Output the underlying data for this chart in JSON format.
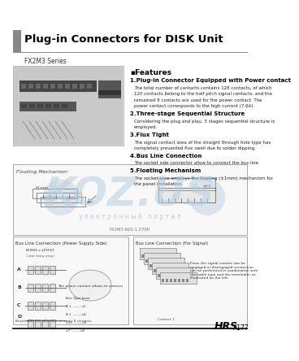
{
  "title": "Plug-in Connectors for DISK Unit",
  "subtitle": "FX2M3 Series",
  "bg_color": "#ffffff",
  "header_bar_color": "#888888",
  "line_color": "#000000",
  "footer_brand": "HRS",
  "footer_page": "A177",
  "features_title": "▪Features",
  "features": [
    {
      "num": "1.",
      "bold": "Plug-in Connector Equipped with Power contact",
      "text": "The total number of contacts contains 128 contacts, of which\n120 contacts belong to the half pitch signal contacts, and the\nremained 8 contacts are used for the power contact. The\npower contact corresponds to the high current (7.6A)."
    },
    {
      "num": "2.",
      "bold": "Three-stage Sequential Structure",
      "text": "Considering the plug and play, 3 stages sequential structure is\nemployed."
    },
    {
      "num": "3.",
      "bold": "Flux Tight",
      "text": "The signal contact area of the straight through hole type has\ncompletely prevented flux swell due to solder dipping."
    },
    {
      "num": "4.",
      "bold": "Bus Line Connection",
      "text": "The socket side connector allow to connect the bus line."
    },
    {
      "num": "5.",
      "bold": "Floating Mechanism",
      "text": "The socket type employs the floating (±1mm) mechanism for\nthe panel installation."
    }
  ],
  "floating_label": "Floating Mechanism",
  "bus_power_label": "Bus Line Connection (Power Supply Side)",
  "bus_signal_label": "Bus Line Connection (For Signal)",
  "watermark_main": "KOZ.US",
  "watermark_sub": "у л е к т р о н н ы й   п о р т а л",
  "watermark_color": "#b8cfe0",
  "wm_dot_color": "#c0d0e0",
  "footer_note": "FX2M3-60S-1.27SH"
}
